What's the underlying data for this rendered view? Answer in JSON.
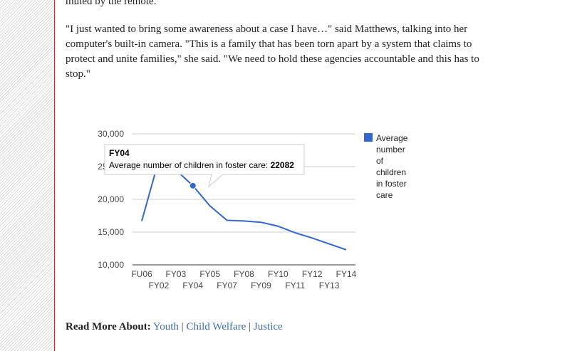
{
  "article": {
    "top_text": "muted by the remote.",
    "quote": "\"I just wanted to bring some awareness about a case I have…\" said Matthews, talking into her computer's built-in camera. \"This is a family that has been torn apart by a system that claims to protect and unite families,\" she said. \"We need to hold these agencies accountable and this has to stop.\""
  },
  "read_more": {
    "label": "Read More About:",
    "links": [
      "Youth",
      "Child Welfare",
      "Justice"
    ],
    "separator": "|"
  },
  "chart_data": {
    "type": "line",
    "categories": [
      "FU06",
      "FY02",
      "FY03",
      "FY04",
      "FY05",
      "FY07",
      "FY08",
      "FY09",
      "FY10",
      "FY11",
      "FY12",
      "FY13",
      "FY14"
    ],
    "series": [
      {
        "name": "Average number of children in foster care",
        "values": [
          16700,
          26000,
          24500,
          22082,
          19000,
          16800,
          16700,
          16500,
          15900,
          14900,
          14100,
          13200,
          12300
        ],
        "color": "#3366cc"
      }
    ],
    "y_ticks": [
      "30,000",
      "25,000",
      "20,000",
      "15,000",
      "10,000"
    ],
    "ylim": [
      10000,
      30000
    ],
    "grid": true,
    "legend_position": "right",
    "legend_lines": [
      "Average",
      "number",
      "of",
      "children",
      "in foster",
      "care"
    ],
    "tooltip": {
      "title": "FY04",
      "label": "Average number of children in foster care:",
      "value": "22082",
      "index": 3
    }
  }
}
